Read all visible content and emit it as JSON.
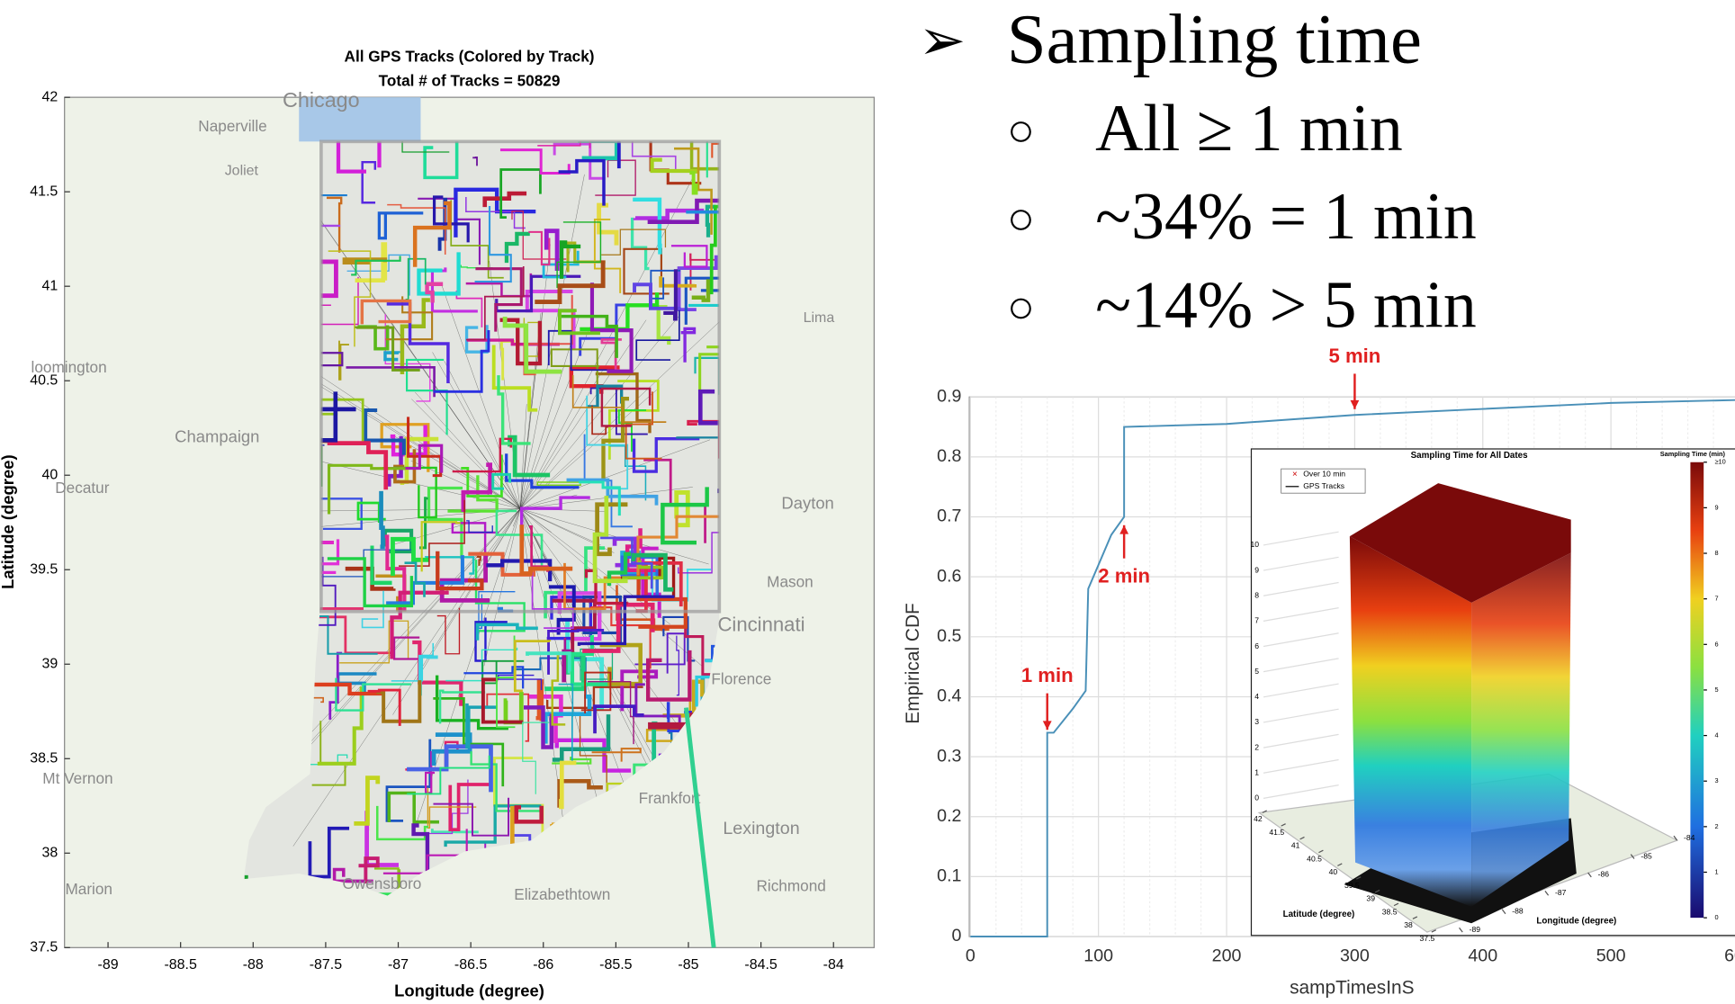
{
  "bullets": [
    {
      "marker": "➢",
      "text": "Sampling time"
    },
    {
      "marker": "○",
      "text": "All ≥ 1 min"
    },
    {
      "marker": "○",
      "text": "~34% = 1 min"
    },
    {
      "marker": "○",
      "text": "~14% > 5 min"
    }
  ],
  "chart_data": [
    {
      "type": "map",
      "title": "All GPS Tracks (Colored by Track)",
      "subtitle": "Total # of Tracks = 50829",
      "xlabel": "Longitude (degree)",
      "ylabel": "Latitude (degree)",
      "xlim": [
        -89.3,
        -83.72
      ],
      "ylim": [
        37.5,
        42
      ],
      "xticks": [
        -89,
        -88.5,
        -88,
        -87.5,
        -87,
        -86.5,
        -86,
        -85.5,
        -85,
        -84.5,
        -84
      ],
      "yticks": [
        37.5,
        38,
        38.5,
        39,
        39.5,
        40,
        40.5,
        41,
        41.5,
        42
      ],
      "basemap_labels": [
        "Chicago",
        "Naperville",
        "Joliet",
        "loomington",
        "Champaign",
        "Decatur",
        "Lima",
        "Dayton",
        "Mason",
        "Cincinnati",
        "Florence",
        "Mt Vernon",
        "Marion",
        "Owensboro",
        "Elizabethtown",
        "Frankfort",
        "Lexington",
        "Richmond"
      ]
    },
    {
      "type": "line",
      "xlabel": "sampTimesInS",
      "ylabel": "Empirical CDF",
      "color": "#4a90b8",
      "x": [
        0,
        60,
        60,
        65,
        80,
        90,
        92,
        100,
        110,
        120,
        120,
        200,
        300,
        400,
        500,
        600
      ],
      "values": [
        0,
        0,
        0.34,
        0.34,
        0.38,
        0.41,
        0.58,
        0.62,
        0.67,
        0.7,
        0.85,
        0.855,
        0.87,
        0.88,
        0.89,
        0.895
      ],
      "xlim": [
        0,
        600
      ],
      "ylim": [
        0,
        0.9
      ],
      "xticks": [
        0,
        100,
        200,
        300,
        400,
        500,
        600
      ],
      "yticks": [
        0,
        0.1,
        0.2,
        0.3,
        0.4,
        0.5,
        0.6,
        0.7,
        0.8,
        0.9
      ],
      "grid": true,
      "annotations": [
        {
          "text": "1 min",
          "x": 60
        },
        {
          "text": "2 min",
          "x": 120
        },
        {
          "text": "5 min",
          "x": 300
        }
      ],
      "inset": {
        "title": "Sampling Time for All Dates",
        "legend": [
          "Over 10 min",
          "GPS Tracks"
        ],
        "xlabel": "Longitude (degree)",
        "ylabel": "Latitude (degree)",
        "xticks": [
          -89,
          -88,
          -87,
          -86,
          -85,
          -84
        ],
        "yticks": [
          42,
          41.5,
          41,
          40.5,
          40,
          39.5,
          39,
          38.5,
          38,
          37.5
        ],
        "zticks": [
          0,
          1,
          2,
          3,
          4,
          5,
          6,
          7,
          8,
          9,
          10
        ],
        "colorbar": {
          "label": "Sampling Time (min)",
          "ticks": [
            0,
            1,
            2,
            3,
            4,
            5,
            6,
            7,
            8,
            9,
            {
              "value": 10,
              "label": "≥10"
            }
          ]
        }
      }
    }
  ]
}
